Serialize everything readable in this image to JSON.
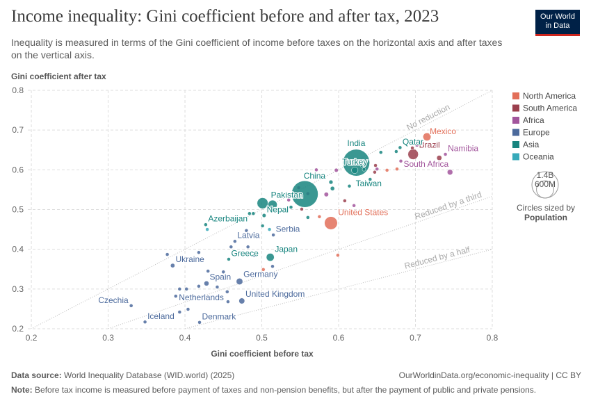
{
  "header": {
    "title": "Income inequality: Gini coefficient before and after tax, 2023",
    "subtitle": "Inequality is measured in terms of the Gini coefficient of income before taxes on the horizontal axis and after taxes on the vertical axis.",
    "logo": [
      "Our World",
      "in Data"
    ]
  },
  "chart_data": {
    "type": "scatter",
    "y_label": "Gini coefficient after tax",
    "x_label": "Gini coefficient before tax",
    "xlim": [
      0.19,
      0.8
    ],
    "ylim": [
      0.2,
      0.8
    ],
    "xticks": [
      0.2,
      0.3,
      0.4,
      0.5,
      0.6,
      0.7,
      0.8
    ],
    "yticks": [
      0.2,
      0.3,
      0.4,
      0.5,
      0.6,
      0.7,
      0.8
    ],
    "grid": true,
    "reference_lines": [
      {
        "label": "No reduction",
        "factor": 1
      },
      {
        "label": "Reduced by a third",
        "factor": 0.6667
      },
      {
        "label": "Reduced by a half",
        "factor": 0.5
      }
    ],
    "size_legend": {
      "title": "Circles sized by",
      "variable": "Population",
      "values": [
        {
          "value": 1400,
          "label": "1.4B"
        },
        {
          "value": 600,
          "label": "600M"
        }
      ]
    },
    "series": [
      {
        "name": "North America",
        "color": "#e26f59",
        "x": [
          0.715,
          0.59,
          0.502,
          0.599,
          0.575,
          0.676,
          0.663
        ],
        "values": [
          0.683,
          0.466,
          0.349,
          0.385,
          0.482,
          0.602,
          0.599
        ],
        "sizes": [
          128,
          335,
          1,
          3,
          1,
          1,
          1
        ],
        "labels": [
          "Mexico",
          "United States",
          null,
          null,
          null,
          null,
          null
        ]
      },
      {
        "name": "South America",
        "color": "#9b3f4d",
        "x": [
          0.697,
          0.552,
          0.647,
          0.648,
          0.731,
          0.696,
          0.608
        ],
        "values": [
          0.639,
          0.501,
          0.594,
          0.611,
          0.63,
          0.655,
          0.522
        ],
        "sizes": [
          216,
          1,
          7,
          3,
          52,
          8,
          1
        ],
        "labels": [
          "Brazil",
          null,
          null,
          null,
          null,
          null,
          null
        ]
      },
      {
        "name": "Africa",
        "color": "#a2559c",
        "x": [
          0.739,
          0.745,
          0.548,
          0.597,
          0.65,
          0.681,
          0.702,
          0.726,
          0.571,
          0.584,
          0.535,
          0.62,
          0.56
        ],
        "values": [
          0.639,
          0.594,
          0.555,
          0.599,
          0.602,
          0.622,
          0.662,
          0.66,
          0.6,
          0.538,
          0.524,
          0.51,
          0.54
        ],
        "sizes": [
          3,
          60,
          20,
          30,
          12,
          5,
          2,
          5,
          20,
          40,
          10,
          15,
          25
        ],
        "labels": [
          "Namibia",
          "South Africa",
          null,
          null,
          null,
          null,
          null,
          null,
          null,
          null,
          null,
          null,
          null
        ]
      },
      {
        "name": "Europe",
        "color": "#4c6a9c",
        "x": [
          0.384,
          0.465,
          0.515,
          0.471,
          0.428,
          0.474,
          0.456,
          0.33,
          0.348,
          0.419,
          0.377,
          0.393,
          0.388,
          0.402,
          0.404,
          0.418,
          0.393,
          0.418,
          0.43,
          0.442,
          0.45,
          0.46,
          0.48,
          0.482,
          0.49,
          0.514,
          0.455
        ],
        "values": [
          0.359,
          0.42,
          0.436,
          0.319,
          0.314,
          0.27,
          0.268,
          0.258,
          0.217,
          0.216,
          0.387,
          0.3,
          0.282,
          0.3,
          0.249,
          0.307,
          0.242,
          0.392,
          0.345,
          0.305,
          0.343,
          0.406,
          0.447,
          0.406,
          0.384,
          0.357,
          0.293
        ],
        "sizes": [
          37,
          2,
          7,
          84,
          48,
          68,
          18,
          10,
          0.4,
          6,
          3,
          5,
          2,
          4,
          1,
          3,
          1,
          2,
          10,
          9,
          5,
          2,
          4,
          2,
          2,
          11,
          6
        ],
        "labels": [
          "Ukraine",
          "Latvia",
          "Serbia",
          "Germany",
          "Spain",
          "United Kingdom",
          "Netherlands",
          "Czechia",
          "Iceland",
          "Denmark",
          null,
          null,
          null,
          null,
          null,
          null,
          null,
          null,
          null,
          null,
          null,
          null,
          null,
          null,
          null,
          null,
          null
        ]
      },
      {
        "name": "Asia",
        "color": "#18857f",
        "x": [
          0.623,
          0.68,
          0.621,
          0.556,
          0.641,
          0.501,
          0.503,
          0.427,
          0.511,
          0.457,
          0.514,
          0.484,
          0.489,
          0.501,
          0.538,
          0.56,
          0.592,
          0.631,
          0.655,
          0.675,
          0.59,
          0.614,
          0.633
        ],
        "values": [
          0.618,
          0.656,
          0.599,
          0.539,
          0.576,
          0.516,
          0.485,
          0.462,
          0.38,
          0.375,
          0.512,
          0.49,
          0.49,
          0.459,
          0.506,
          0.48,
          0.553,
          0.609,
          0.644,
          0.646,
          0.569,
          0.559,
          0.601
        ],
        "sizes": [
          1430,
          3,
          85,
          1410,
          23,
          240,
          30,
          10,
          124,
          10,
          170,
          5,
          4,
          2,
          5,
          3,
          36,
          10,
          3,
          4,
          33,
          20,
          5
        ],
        "labels": [
          "India",
          "Qatar",
          "Turkey",
          "China",
          "Taiwan",
          "Pakistan",
          "Nepal",
          "Azerbaijan",
          "Japan",
          "Greece",
          null,
          null,
          null,
          null,
          null,
          null,
          null,
          null,
          null,
          null,
          null,
          null,
          null
        ]
      },
      {
        "name": "Oceania",
        "color": "#38aaba",
        "x": [
          0.429,
          0.51
        ],
        "values": [
          0.45,
          0.45
        ],
        "sizes": [
          1,
          0.5
        ],
        "labels": [
          null,
          null
        ]
      }
    ]
  },
  "footer": {
    "source_label": "Data source:",
    "source": "World Inequality Database (WID.world) (2025)",
    "url": "OurWorldinData.org/economic-inequality | CC BY",
    "note_label": "Note:",
    "note": "Before tax income is measured before payment of taxes and non-pension benefits, but after the payment of public and private pensions."
  }
}
